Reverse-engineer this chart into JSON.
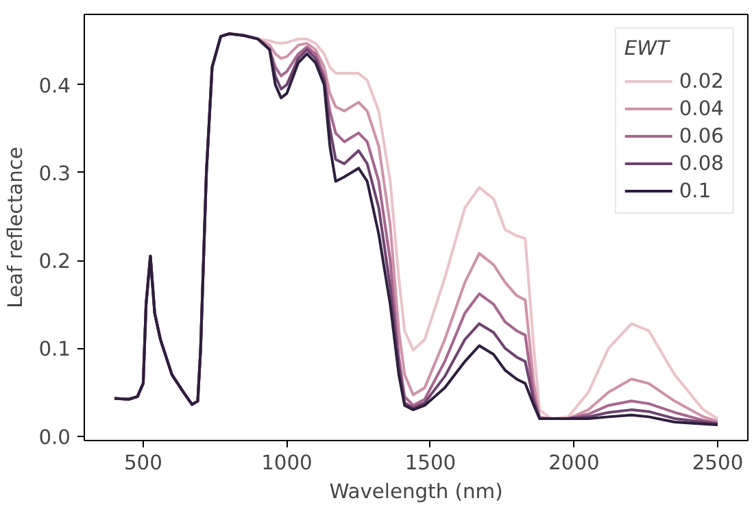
{
  "chart_data": {
    "type": "line",
    "xlabel": "Wavelength (nm)",
    "ylabel": "Leaf reflectance",
    "legend_title": "EWT",
    "legend": "top right",
    "grid": false,
    "line_style": "solid",
    "xlim": [
      295,
      2605
    ],
    "ylim": [
      -0.005,
      0.48
    ],
    "xticks": [
      500,
      1000,
      1500,
      2000,
      2500
    ],
    "yticks": [
      {
        "value": 0,
        "label": "0.0"
      },
      0.1,
      0.2,
      0.3,
      0.4
    ],
    "x": [
      400,
      450,
      480,
      500,
      510,
      525,
      540,
      560,
      600,
      640,
      670,
      690,
      700,
      720,
      740,
      770,
      800,
      850,
      900,
      940,
      960,
      980,
      1000,
      1040,
      1070,
      1100,
      1130,
      1150,
      1170,
      1200,
      1250,
      1280,
      1320,
      1360,
      1390,
      1410,
      1440,
      1480,
      1550,
      1620,
      1670,
      1720,
      1760,
      1800,
      1830,
      1860,
      1880,
      1920,
      1980,
      2050,
      2120,
      2200,
      2260,
      2350,
      2450,
      2500
    ],
    "series": [
      {
        "name": "0.02",
        "color": "#ebc3c9",
        "values": [
          0.043,
          0.042,
          0.045,
          0.06,
          0.15,
          0.205,
          0.14,
          0.11,
          0.07,
          0.05,
          0.036,
          0.04,
          0.1,
          0.3,
          0.42,
          0.455,
          0.458,
          0.456,
          0.452,
          0.45,
          0.448,
          0.447,
          0.448,
          0.452,
          0.452,
          0.447,
          0.435,
          0.42,
          0.413,
          0.413,
          0.413,
          0.405,
          0.37,
          0.29,
          0.18,
          0.12,
          0.098,
          0.11,
          0.18,
          0.26,
          0.283,
          0.27,
          0.235,
          0.228,
          0.225,
          0.1,
          0.03,
          0.02,
          0.022,
          0.05,
          0.1,
          0.128,
          0.12,
          0.07,
          0.03,
          0.02
        ]
      },
      {
        "name": "0.04",
        "color": "#cf92a8",
        "values": [
          0.043,
          0.042,
          0.045,
          0.06,
          0.15,
          0.205,
          0.14,
          0.11,
          0.07,
          0.05,
          0.036,
          0.04,
          0.1,
          0.3,
          0.42,
          0.455,
          0.458,
          0.456,
          0.452,
          0.445,
          0.435,
          0.43,
          0.432,
          0.445,
          0.447,
          0.44,
          0.42,
          0.39,
          0.375,
          0.37,
          0.38,
          0.37,
          0.33,
          0.24,
          0.12,
          0.07,
          0.047,
          0.055,
          0.11,
          0.175,
          0.208,
          0.195,
          0.175,
          0.16,
          0.155,
          0.06,
          0.022,
          0.02,
          0.02,
          0.03,
          0.05,
          0.065,
          0.06,
          0.04,
          0.022,
          0.017
        ]
      },
      {
        "name": "0.06",
        "color": "#a8658f",
        "values": [
          0.043,
          0.042,
          0.045,
          0.06,
          0.15,
          0.205,
          0.14,
          0.11,
          0.07,
          0.05,
          0.036,
          0.04,
          0.1,
          0.3,
          0.42,
          0.455,
          0.458,
          0.456,
          0.452,
          0.44,
          0.42,
          0.41,
          0.415,
          0.435,
          0.443,
          0.435,
          0.41,
          0.37,
          0.345,
          0.335,
          0.345,
          0.335,
          0.29,
          0.2,
          0.09,
          0.045,
          0.035,
          0.042,
          0.085,
          0.14,
          0.162,
          0.15,
          0.13,
          0.12,
          0.115,
          0.045,
          0.02,
          0.02,
          0.02,
          0.025,
          0.035,
          0.04,
          0.037,
          0.027,
          0.018,
          0.015
        ]
      },
      {
        "name": "0.08",
        "color": "#6f4370",
        "values": [
          0.043,
          0.042,
          0.045,
          0.06,
          0.15,
          0.205,
          0.14,
          0.11,
          0.07,
          0.05,
          0.036,
          0.04,
          0.1,
          0.3,
          0.42,
          0.455,
          0.458,
          0.456,
          0.452,
          0.44,
          0.41,
          0.395,
          0.4,
          0.43,
          0.44,
          0.43,
          0.405,
          0.35,
          0.315,
          0.31,
          0.325,
          0.31,
          0.26,
          0.17,
          0.08,
          0.038,
          0.032,
          0.038,
          0.068,
          0.11,
          0.128,
          0.118,
          0.1,
          0.09,
          0.085,
          0.04,
          0.02,
          0.02,
          0.02,
          0.022,
          0.027,
          0.03,
          0.028,
          0.02,
          0.016,
          0.014
        ]
      },
      {
        "name": "0.1",
        "color": "#2d1e3e",
        "values": [
          0.043,
          0.042,
          0.045,
          0.06,
          0.15,
          0.205,
          0.14,
          0.11,
          0.07,
          0.05,
          0.036,
          0.04,
          0.1,
          0.3,
          0.42,
          0.455,
          0.458,
          0.456,
          0.452,
          0.44,
          0.4,
          0.385,
          0.39,
          0.425,
          0.435,
          0.425,
          0.4,
          0.33,
          0.29,
          0.295,
          0.305,
          0.29,
          0.23,
          0.15,
          0.07,
          0.035,
          0.03,
          0.035,
          0.055,
          0.085,
          0.103,
          0.093,
          0.075,
          0.065,
          0.06,
          0.035,
          0.02,
          0.02,
          0.02,
          0.02,
          0.022,
          0.024,
          0.022,
          0.016,
          0.014,
          0.013
        ]
      }
    ]
  }
}
